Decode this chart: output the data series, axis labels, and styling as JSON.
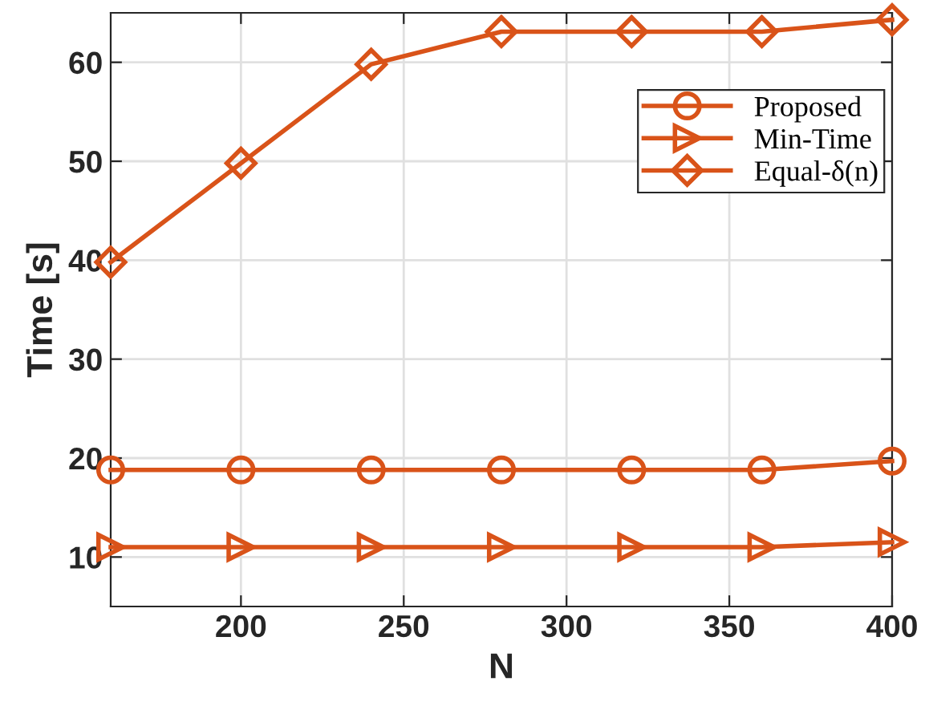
{
  "chart_data": {
    "type": "line",
    "xlabel": "N",
    "ylabel": "Time [s]",
    "x": [
      160,
      200,
      240,
      280,
      320,
      360,
      400
    ],
    "series": [
      {
        "name": "Proposed",
        "color": "#d95319",
        "marker": "circle",
        "values": [
          18.8,
          18.8,
          18.8,
          18.8,
          18.8,
          18.8,
          19.7
        ]
      },
      {
        "name": "Min-Time",
        "color": "#d95319",
        "marker": "triangle",
        "values": [
          11.0,
          11.0,
          11.0,
          11.0,
          11.0,
          11.0,
          11.5
        ]
      },
      {
        "name": "Equal-δ(n)",
        "color": "#d95319",
        "marker": "diamond",
        "values": [
          39.8,
          49.8,
          59.8,
          63.1,
          63.1,
          63.1,
          64.3
        ]
      }
    ],
    "xlim": [
      160,
      400
    ],
    "xticks": [
      200,
      250,
      300,
      350,
      400
    ],
    "ylim": [
      5,
      65
    ],
    "yticks": [
      10,
      20,
      30,
      40,
      50,
      60
    ],
    "grid": true,
    "legend": "top right",
    "line_style": "solid"
  }
}
